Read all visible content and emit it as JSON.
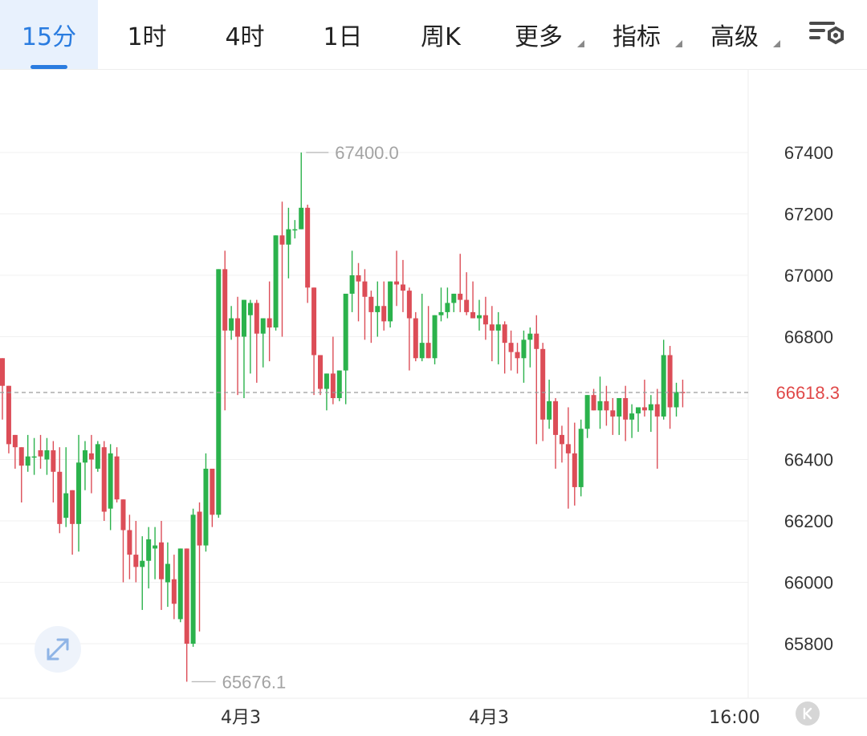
{
  "tabs": [
    {
      "label": "15分",
      "active": true,
      "dropdown": false
    },
    {
      "label": "1时",
      "active": false,
      "dropdown": false
    },
    {
      "label": "4时",
      "active": false,
      "dropdown": false
    },
    {
      "label": "1日",
      "active": false,
      "dropdown": false
    },
    {
      "label": "周K",
      "active": false,
      "dropdown": false
    },
    {
      "label": "更多",
      "active": false,
      "dropdown": true
    },
    {
      "label": "指标",
      "active": false,
      "dropdown": true
    },
    {
      "label": "高级",
      "active": false,
      "dropdown": true
    }
  ],
  "settings_icon": "chart-settings-icon",
  "expand_icon": "expand-arrows-icon",
  "k_button_icon": "k-circle-icon",
  "colors": {
    "up": "#2bb24c",
    "down": "#dc4d57",
    "accent": "#2a7ce0",
    "current_price": "#e04848"
  },
  "chart_data": {
    "type": "candlestick",
    "y_ticks": [
      65800,
      66000,
      66200,
      66400,
      66600,
      66800,
      67000,
      67200,
      67400
    ],
    "ylim": [
      65640,
      67760
    ],
    "x_labels": [
      "4月3",
      "4月3",
      "16:00"
    ],
    "current_price": 66618.3,
    "current_price_label": "66618.3",
    "high_label": "67400.0",
    "low_label": "65676.1",
    "candles": [
      [
        66730,
        66730,
        66640,
        66530
      ],
      [
        66640,
        66640,
        66450,
        66420
      ],
      [
        66480,
        66480,
        66440,
        66370
      ],
      [
        66440,
        66440,
        66380,
        66260
      ],
      [
        66380,
        66480,
        66410,
        66360
      ],
      [
        66410,
        66470,
        66410,
        66350
      ],
      [
        66430,
        66480,
        66410,
        66370
      ],
      [
        66400,
        66470,
        66430,
        66350
      ],
      [
        66430,
        66460,
        66360,
        66260
      ],
      [
        66360,
        66440,
        66190,
        66160
      ],
      [
        66210,
        66440,
        66290,
        66180
      ],
      [
        66300,
        66300,
        66190,
        66090
      ],
      [
        66190,
        66480,
        66390,
        66100
      ],
      [
        66390,
        66460,
        66430,
        66300
      ],
      [
        66420,
        66480,
        66400,
        66290
      ],
      [
        66370,
        66460,
        66450,
        66360
      ],
      [
        66440,
        66460,
        66230,
        66200
      ],
      [
        66240,
        66450,
        66420,
        66170
      ],
      [
        66410,
        66440,
        66270,
        66260
      ],
      [
        66270,
        66270,
        66170,
        66000
      ],
      [
        66170,
        66220,
        66090,
        66010
      ],
      [
        66090,
        66200,
        66050,
        66000
      ],
      [
        66050,
        66150,
        66070,
        65910
      ],
      [
        66070,
        66180,
        66140,
        65980
      ],
      [
        66110,
        66180,
        66120,
        66010
      ],
      [
        66130,
        66200,
        66010,
        65910
      ],
      [
        66000,
        66130,
        66060,
        65920
      ],
      [
        66010,
        66090,
        65930,
        65880
      ],
      [
        65880,
        66080,
        66110,
        65870
      ],
      [
        66110,
        66080,
        65800,
        65676.1
      ],
      [
        65800,
        66240,
        66220,
        65790
      ],
      [
        66230,
        66260,
        66120,
        65840
      ],
      [
        66120,
        66420,
        66370,
        66100
      ],
      [
        66370,
        66280,
        66220,
        66180
      ],
      [
        66220,
        66820,
        67020,
        66210
      ],
      [
        67020,
        67080,
        66820,
        66560
      ],
      [
        66820,
        66900,
        66860,
        66790
      ],
      [
        66860,
        66930,
        66800,
        66610
      ],
      [
        66800,
        66900,
        66920,
        66600
      ],
      [
        66870,
        66920,
        66910,
        66680
      ],
      [
        66910,
        66920,
        66810,
        66650
      ],
      [
        66810,
        66860,
        66860,
        66700
      ],
      [
        66860,
        66980,
        66830,
        66720
      ],
      [
        66830,
        67040,
        67130,
        66820
      ],
      [
        67130,
        67240,
        67100,
        66800
      ],
      [
        67100,
        67220,
        67150,
        66990
      ],
      [
        67150,
        67180,
        67150,
        67120
      ],
      [
        67150,
        67400,
        67220,
        67150
      ],
      [
        67220,
        67230,
        66960,
        66910
      ],
      [
        66960,
        66960,
        66740,
        66610
      ],
      [
        66740,
        66720,
        66630,
        66610
      ],
      [
        66630,
        66660,
        66680,
        66560
      ],
      [
        66680,
        66800,
        66600,
        66580
      ],
      [
        66600,
        66680,
        66690,
        66590
      ],
      [
        66690,
        66790,
        66940,
        66580
      ],
      [
        66940,
        67080,
        67000,
        66880
      ],
      [
        67000,
        67040,
        66980,
        66850
      ],
      [
        66980,
        67020,
        66930,
        66790
      ],
      [
        66930,
        66950,
        66880,
        66780
      ],
      [
        66880,
        66980,
        66900,
        66800
      ],
      [
        66900,
        66980,
        66850,
        66820
      ],
      [
        66850,
        66950,
        66980,
        66830
      ],
      [
        66980,
        67080,
        66970,
        66900
      ],
      [
        66970,
        67050,
        66950,
        66880
      ],
      [
        66950,
        66960,
        66860,
        66690
      ],
      [
        66860,
        66880,
        66730,
        66720
      ],
      [
        66730,
        66940,
        66780,
        66720
      ],
      [
        66780,
        66900,
        66730,
        66740
      ],
      [
        66730,
        66860,
        66870,
        66710
      ],
      [
        66870,
        66960,
        66880,
        66850
      ],
      [
        66880,
        66960,
        66910,
        66860
      ],
      [
        66910,
        66930,
        66940,
        66880
      ],
      [
        66940,
        67070,
        66920,
        66880
      ],
      [
        66920,
        67010,
        66880,
        66870
      ],
      [
        66880,
        66980,
        66860,
        66860
      ],
      [
        66860,
        66920,
        66870,
        66820
      ],
      [
        66870,
        66930,
        66840,
        66790
      ],
      [
        66840,
        66900,
        66820,
        66720
      ],
      [
        66820,
        66880,
        66840,
        66710
      ],
      [
        66840,
        66850,
        66780,
        66680
      ],
      [
        66780,
        66820,
        66750,
        66690
      ],
      [
        66750,
        66780,
        66730,
        66680
      ],
      [
        66730,
        66820,
        66790,
        66650
      ],
      [
        66790,
        66830,
        66810,
        66700
      ],
      [
        66810,
        66870,
        66760,
        66450
      ],
      [
        66760,
        66780,
        66530,
        66460
      ],
      [
        66530,
        66660,
        66590,
        66500
      ],
      [
        66590,
        66600,
        66480,
        66370
      ],
      [
        66480,
        66510,
        66450,
        66390
      ],
      [
        66450,
        66570,
        66420,
        66240
      ],
      [
        66420,
        66520,
        66310,
        66250
      ],
      [
        66310,
        66530,
        66500,
        66280
      ],
      [
        66500,
        66560,
        66610,
        66470
      ],
      [
        66610,
        66630,
        66560,
        66560
      ],
      [
        66560,
        66670,
        66590,
        66500
      ],
      [
        66590,
        66640,
        66560,
        66510
      ],
      [
        66560,
        66600,
        66540,
        66480
      ],
      [
        66540,
        66590,
        66600,
        66480
      ],
      [
        66600,
        66640,
        66530,
        66460
      ],
      [
        66530,
        66580,
        66550,
        66470
      ],
      [
        66550,
        66570,
        66570,
        66490
      ],
      [
        66570,
        66660,
        66560,
        66540
      ],
      [
        66560,
        66610,
        66580,
        66490
      ],
      [
        66580,
        66630,
        66540,
        66370
      ],
      [
        66540,
        66790,
        66740,
        66530
      ],
      [
        66740,
        66770,
        66570,
        66500
      ],
      [
        66570,
        66650,
        66620,
        66540
      ],
      [
        66620,
        66660,
        66618.3,
        66570
      ]
    ]
  }
}
